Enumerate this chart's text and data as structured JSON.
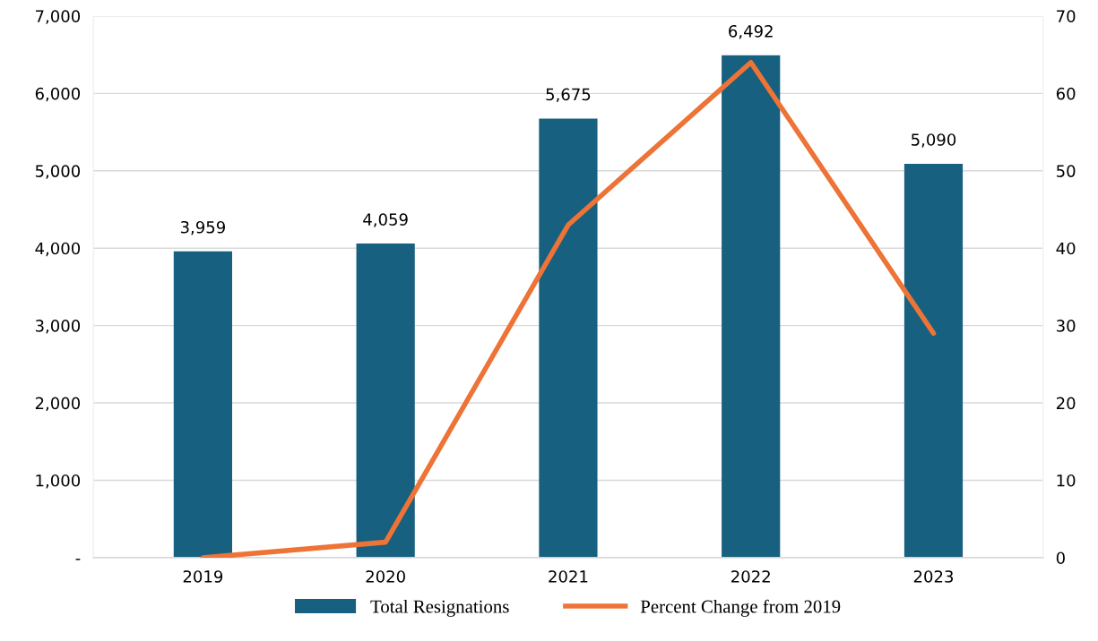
{
  "chart_data": {
    "type": "bar",
    "categories": [
      "2019",
      "2020",
      "2021",
      "2022",
      "2023"
    ],
    "series": [
      {
        "name": "Total Resignations",
        "color": "#17607f",
        "values": [
          3959,
          4059,
          5675,
          6492,
          5090
        ]
      },
      {
        "name": "Percent Change from 2019",
        "type": "line",
        "axis": "y2",
        "color": "#ed7336",
        "values": [
          0,
          2,
          43,
          64,
          29
        ]
      }
    ],
    "value_labels": [
      "3,959",
      "4,059",
      "5,675",
      "6,492",
      "5,090"
    ],
    "ylim": [
      0,
      7000
    ],
    "yticks": [
      {
        "value": 0,
        "label": "-"
      },
      {
        "value": 1000,
        "label": "1,000"
      },
      {
        "value": 2000,
        "label": "2,000"
      },
      {
        "value": 3000,
        "label": "3,000"
      },
      {
        "value": 4000,
        "label": "4,000"
      },
      {
        "value": 5000,
        "label": "5,000"
      },
      {
        "value": 6000,
        "label": "6,000"
      },
      {
        "value": 7000,
        "label": "7,000"
      }
    ],
    "y2lim": [
      0,
      70
    ],
    "y2ticks": [
      0,
      10,
      20,
      30,
      40,
      50,
      60,
      70
    ],
    "grid": "y",
    "legend": "bottom",
    "marker": "none",
    "line_style": "solid"
  }
}
